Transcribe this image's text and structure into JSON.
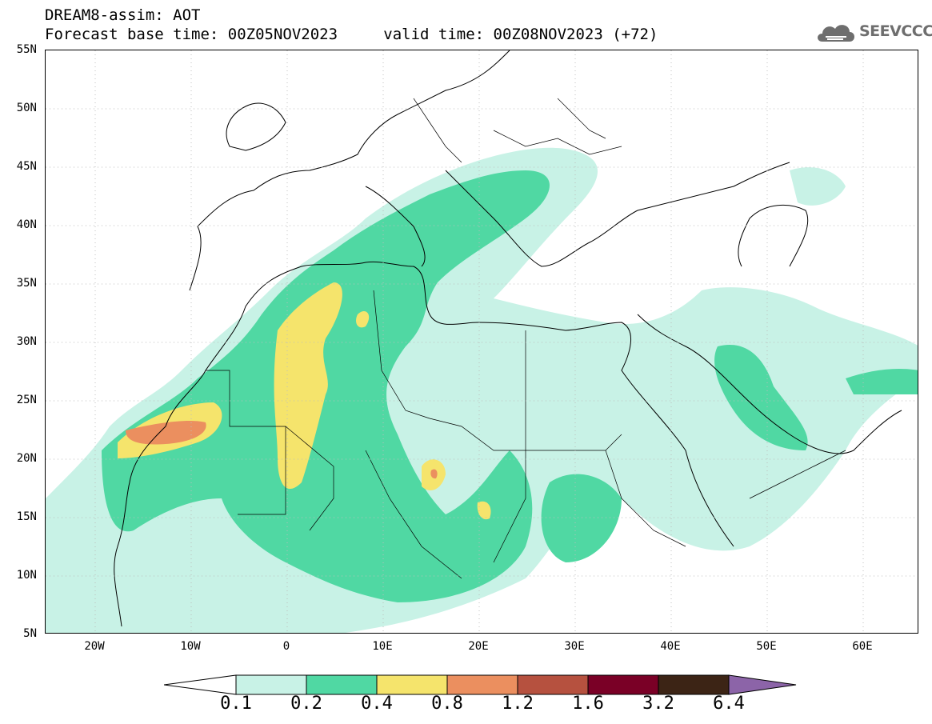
{
  "header": {
    "title_line1": "DREAM8-assim: AOT",
    "base_time": "Forecast base time: 00Z05NOV2023",
    "valid_time": "valid time: 00Z08NOV2023 (+72)",
    "logo_text": "SEEVCCC"
  },
  "map": {
    "variable": "AOT",
    "lon_range": [
      -25,
      65
    ],
    "lat_range": [
      5,
      55
    ],
    "lat_labels": [
      "55N",
      "50N",
      "45N",
      "40N",
      "35N",
      "30N",
      "25N",
      "20N",
      "15N",
      "10N",
      "5N"
    ],
    "lon_labels": [
      "20W",
      "10W",
      "0",
      "10E",
      "20E",
      "30E",
      "40E",
      "50E",
      "60E"
    ],
    "grid": "dotted"
  },
  "legend": {
    "levels": [
      "0.1",
      "0.2",
      "0.4",
      "0.8",
      "1.2",
      "1.6",
      "3.2",
      "6.4"
    ],
    "colors": [
      "#c8f2e6",
      "#50d8a3",
      "#f5e46c",
      "#eb8f5f",
      "#b6513f",
      "#7a0026",
      "#3c2415",
      "#8c64a8"
    ]
  }
}
